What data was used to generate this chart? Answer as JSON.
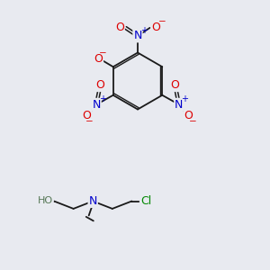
{
  "bg_color": "#e8eaf0",
  "bond_color": "#1a1a1a",
  "atom_colors": {
    "O": "#dd0000",
    "N": "#0000cc",
    "Cl": "#008800",
    "H": "#557755",
    "C": "#1a1a1a"
  },
  "font_size": 8.5
}
